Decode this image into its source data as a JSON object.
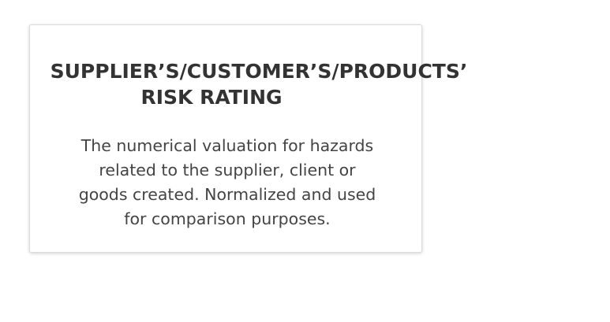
{
  "card": {
    "title_lines": [
      "SUPPLIER’S/CUSTOMER’S/PRODUCTS’",
      "RISK RATING"
    ],
    "description_lines": [
      "The numerical valuation for hazards",
      "related to the supplier, client or",
      "goods created. Normalized and used",
      "for comparison purposes."
    ]
  }
}
